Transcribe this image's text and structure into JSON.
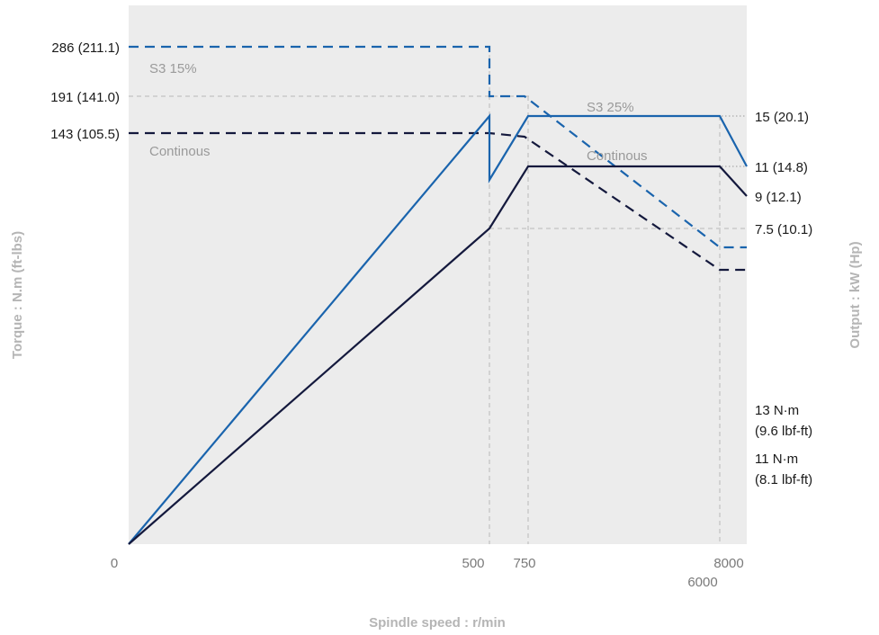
{
  "chart_data": {
    "type": "line",
    "x_axis": {
      "label": "Spindle speed : r/min",
      "tick_labels": [
        "0",
        "500",
        "750",
        "6000",
        "8000"
      ]
    },
    "y_left": {
      "label": "Torque : N.m (ft-lbs)",
      "tick_labels": [
        "286 (211.1)",
        "191 (141.0)",
        "143 (105.5)"
      ]
    },
    "y_right": {
      "label": "Output : kW (Hp)",
      "tick_labels": [
        "15 (20.1)",
        "11 (14.8)",
        "9 (12.1)",
        "7.5 (10.1)"
      ]
    },
    "series": [
      {
        "name": "S3 15%",
        "kind": "torque",
        "style": "dashed",
        "color": "#1a64ad",
        "points": [
          [
            0,
            286
          ],
          [
            500,
            286
          ],
          [
            500,
            191
          ],
          [
            550,
            191
          ],
          [
            6000,
            13
          ],
          [
            8000,
            13
          ]
        ]
      },
      {
        "name": "Continous",
        "kind": "torque",
        "style": "dashed",
        "color": "#14193d",
        "points": [
          [
            0,
            143
          ],
          [
            500,
            143
          ],
          [
            550,
            140
          ],
          [
            6000,
            11
          ],
          [
            8000,
            11
          ]
        ]
      },
      {
        "name": "S3 25%",
        "kind": "output",
        "style": "solid",
        "color": "#1a64ad",
        "points": [
          [
            0,
            0
          ],
          [
            500,
            15
          ],
          [
            500,
            9.5
          ],
          [
            750,
            15
          ],
          [
            6000,
            15
          ],
          [
            8000,
            11
          ]
        ]
      },
      {
        "name": "Continous",
        "kind": "output",
        "style": "solid",
        "color": "#14193d",
        "points": [
          [
            0,
            0
          ],
          [
            500,
            7.5
          ],
          [
            750,
            11
          ],
          [
            6000,
            11
          ],
          [
            8000,
            9
          ]
        ]
      }
    ],
    "annotations": [
      {
        "text": "13 N·m",
        "color": "#1a1a1a"
      },
      {
        "text": "(9.6 lbf-ft)",
        "color": "#1a1a1a"
      },
      {
        "text": "11 N·m",
        "color": "#1a1a1a"
      },
      {
        "text": "(8.1 lbf-ft)",
        "color": "#1a1a1a"
      }
    ],
    "grid": false,
    "plot_background": "#ececec"
  }
}
